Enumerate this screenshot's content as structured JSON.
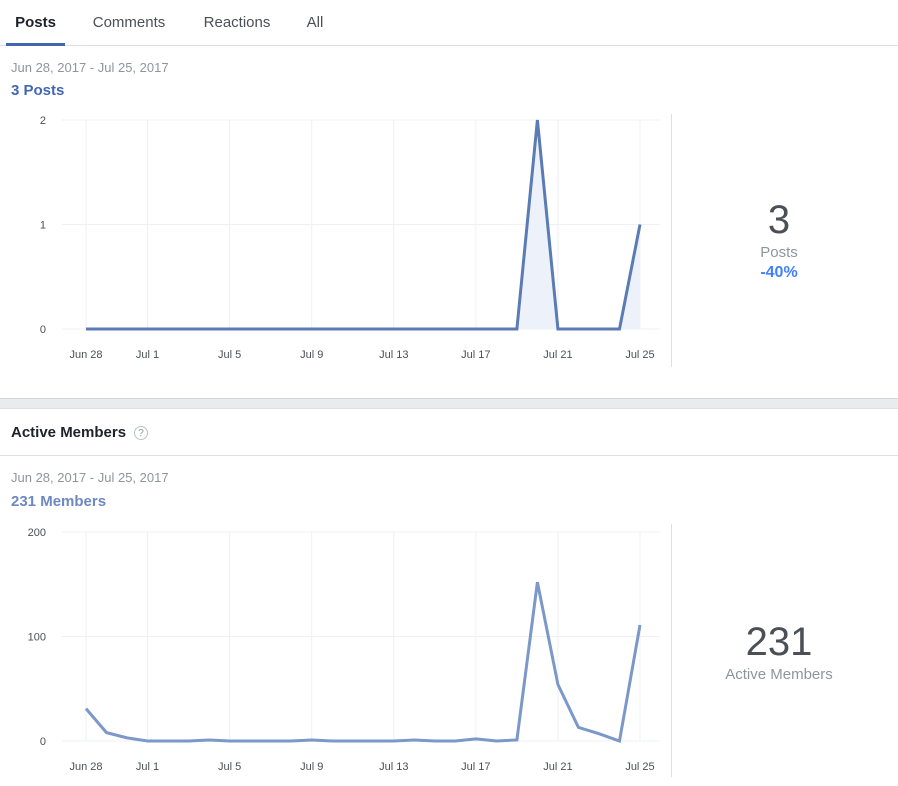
{
  "tabs": [
    {
      "label": "Posts",
      "active": true
    },
    {
      "label": "Comments",
      "active": false
    },
    {
      "label": "Reactions",
      "active": false
    },
    {
      "label": "All",
      "active": false
    }
  ],
  "colors": {
    "accent": "#4267b2",
    "positive_change": "#4080ff",
    "posts_line": "#5b7bb4",
    "members_line": "#7b98c9",
    "area_fill": "#edf1f9"
  },
  "posts_section": {
    "date_range": "Jun 28, 2017 - Jul 25, 2017",
    "summary_link": "3 Posts",
    "stat": {
      "value": "3",
      "label": "Posts",
      "change": "-40%"
    }
  },
  "members_section": {
    "title": "Active Members",
    "help_icon": "question-icon",
    "date_range": "Jun 28, 2017 - Jul 25, 2017",
    "summary_link": "231 Members",
    "stat": {
      "value": "231",
      "label": "Active Members"
    }
  },
  "chart_data": [
    {
      "type": "area",
      "x": [
        "Jun 28",
        "Jun 29",
        "Jun 30",
        "Jul 1",
        "Jul 2",
        "Jul 3",
        "Jul 4",
        "Jul 5",
        "Jul 6",
        "Jul 7",
        "Jul 8",
        "Jul 9",
        "Jul 10",
        "Jul 11",
        "Jul 12",
        "Jul 13",
        "Jul 14",
        "Jul 15",
        "Jul 16",
        "Jul 17",
        "Jul 18",
        "Jul 19",
        "Jul 20",
        "Jul 21",
        "Jul 22",
        "Jul 23",
        "Jul 24",
        "Jul 25"
      ],
      "values": [
        0,
        0,
        0,
        0,
        0,
        0,
        0,
        0,
        0,
        0,
        0,
        0,
        0,
        0,
        0,
        0,
        0,
        0,
        0,
        0,
        0,
        0,
        2,
        0,
        0,
        0,
        0,
        1
      ],
      "x_ticks": [
        "Jun 28",
        "Jul 1",
        "Jul 5",
        "Jul 9",
        "Jul 13",
        "Jul 17",
        "Jul 21",
        "Jul 25"
      ],
      "y_ticks": [
        "0",
        "1",
        "2"
      ],
      "ylim": [
        0,
        2
      ],
      "grid": true
    },
    {
      "type": "line",
      "x": [
        "Jun 28",
        "Jun 29",
        "Jun 30",
        "Jul 1",
        "Jul 2",
        "Jul 3",
        "Jul 4",
        "Jul 5",
        "Jul 6",
        "Jul 7",
        "Jul 8",
        "Jul 9",
        "Jul 10",
        "Jul 11",
        "Jul 12",
        "Jul 13",
        "Jul 14",
        "Jul 15",
        "Jul 16",
        "Jul 17",
        "Jul 18",
        "Jul 19",
        "Jul 20",
        "Jul 21",
        "Jul 22",
        "Jul 23",
        "Jul 24",
        "Jul 25"
      ],
      "values": [
        31,
        8,
        3,
        0,
        0,
        0,
        1,
        0,
        0,
        0,
        0,
        1,
        0,
        0,
        0,
        0,
        1,
        0,
        0,
        2,
        0,
        1,
        152,
        54,
        13,
        7,
        0,
        111
      ],
      "x_ticks": [
        "Jun 28",
        "Jul 1",
        "Jul 5",
        "Jul 9",
        "Jul 13",
        "Jul 17",
        "Jul 21",
        "Jul 25"
      ],
      "y_ticks": [
        "0",
        "100",
        "200"
      ],
      "ylim": [
        0,
        200
      ],
      "grid": true
    }
  ]
}
